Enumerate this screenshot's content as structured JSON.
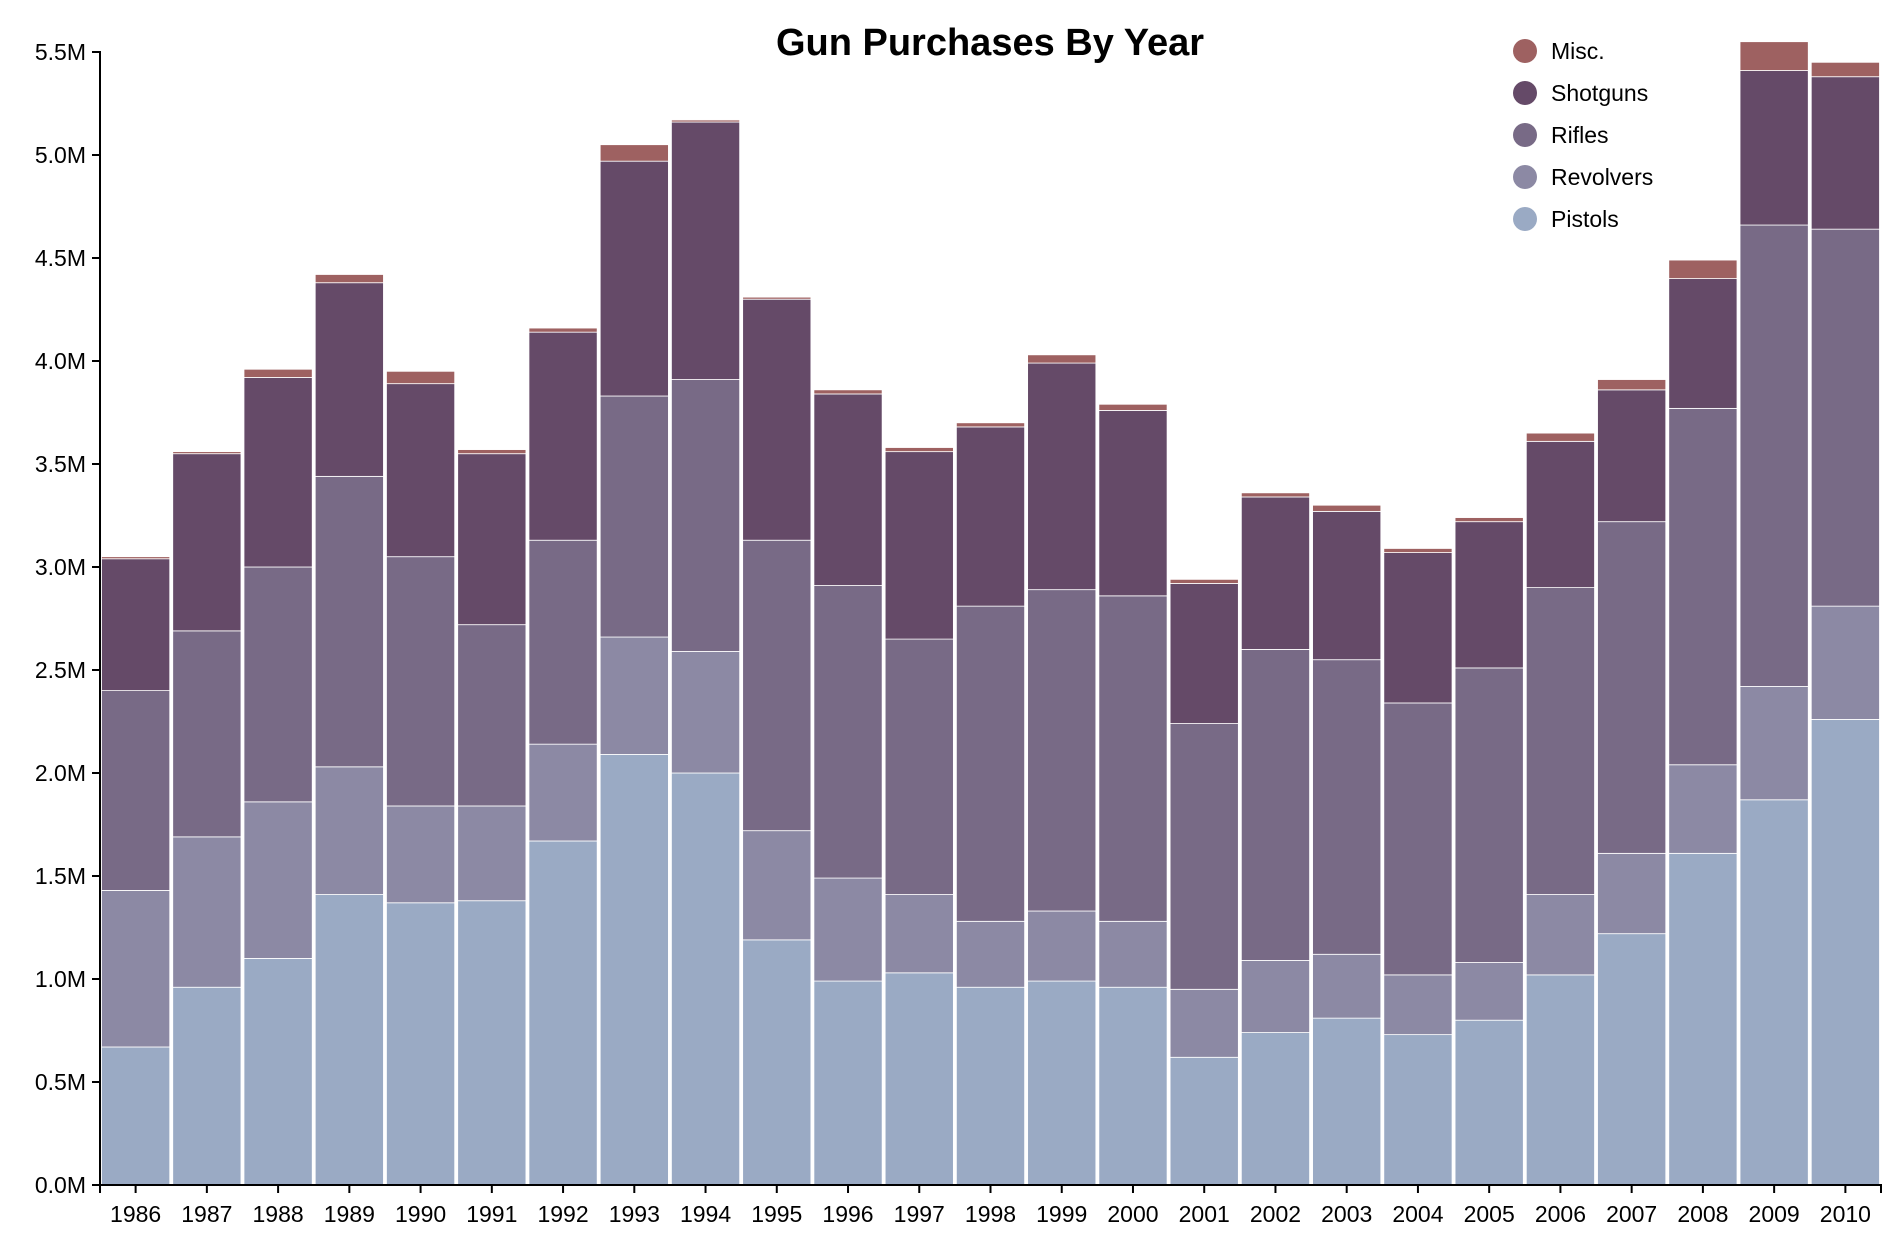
{
  "chart_data": {
    "type": "bar",
    "stacked": true,
    "title": "Gun Purchases By Year",
    "xlabel": "",
    "ylabel": "",
    "ylim": [
      0,
      5500000
    ],
    "y_ticks": [
      {
        "value": 0,
        "label": "0.0M"
      },
      {
        "value": 500000,
        "label": "0.5M"
      },
      {
        "value": 1000000,
        "label": "1.0M"
      },
      {
        "value": 1500000,
        "label": "1.5M"
      },
      {
        "value": 2000000,
        "label": "2.0M"
      },
      {
        "value": 2500000,
        "label": "2.5M"
      },
      {
        "value": 3000000,
        "label": "3.0M"
      },
      {
        "value": 3500000,
        "label": "3.5M"
      },
      {
        "value": 4000000,
        "label": "4.0M"
      },
      {
        "value": 4500000,
        "label": "4.5M"
      },
      {
        "value": 5000000,
        "label": "5.0M"
      },
      {
        "value": 5500000,
        "label": "5.5M"
      }
    ],
    "grid": false,
    "legend_position": "top-right",
    "categories": [
      "1986",
      "1987",
      "1988",
      "1989",
      "1990",
      "1991",
      "1992",
      "1993",
      "1994",
      "1995",
      "1996",
      "1997",
      "1998",
      "1999",
      "2000",
      "2001",
      "2002",
      "2003",
      "2004",
      "2005",
      "2006",
      "2007",
      "2008",
      "2009",
      "2010"
    ],
    "series": [
      {
        "name": "Pistols",
        "color": "#9aaac4",
        "values": [
          670000,
          960000,
          1100000,
          1410000,
          1370000,
          1380000,
          1670000,
          2090000,
          2000000,
          1190000,
          990000,
          1030000,
          960000,
          990000,
          960000,
          620000,
          740000,
          810000,
          730000,
          800000,
          1020000,
          1220000,
          1610000,
          1870000,
          2260000
        ]
      },
      {
        "name": "Revolvers",
        "color": "#8c89a4",
        "values": [
          760000,
          730000,
          760000,
          620000,
          470000,
          460000,
          470000,
          570000,
          590000,
          530000,
          500000,
          380000,
          320000,
          340000,
          320000,
          330000,
          350000,
          310000,
          290000,
          280000,
          390000,
          390000,
          430000,
          550000,
          550000
        ]
      },
      {
        "name": "Rifles",
        "color": "#786a86",
        "values": [
          970000,
          1000000,
          1140000,
          1410000,
          1210000,
          880000,
          990000,
          1170000,
          1320000,
          1410000,
          1420000,
          1240000,
          1530000,
          1560000,
          1580000,
          1290000,
          1510000,
          1430000,
          1320000,
          1430000,
          1490000,
          1610000,
          1730000,
          2240000,
          1830000
        ]
      },
      {
        "name": "Shotguns",
        "color": "#654a68",
        "values": [
          640000,
          860000,
          920000,
          940000,
          840000,
          830000,
          1010000,
          1140000,
          1250000,
          1170000,
          930000,
          910000,
          870000,
          1100000,
          900000,
          680000,
          740000,
          720000,
          730000,
          710000,
          710000,
          640000,
          630000,
          750000,
          740000
        ]
      },
      {
        "name": "Misc.",
        "color": "#9e6161",
        "values": [
          10000,
          10000,
          40000,
          40000,
          60000,
          20000,
          20000,
          80000,
          10000,
          10000,
          20000,
          20000,
          20000,
          40000,
          30000,
          20000,
          20000,
          30000,
          20000,
          20000,
          40000,
          50000,
          90000,
          140000,
          70000
        ]
      }
    ],
    "legend_order": [
      "Misc.",
      "Shotguns",
      "Rifles",
      "Revolvers",
      "Pistols"
    ]
  }
}
